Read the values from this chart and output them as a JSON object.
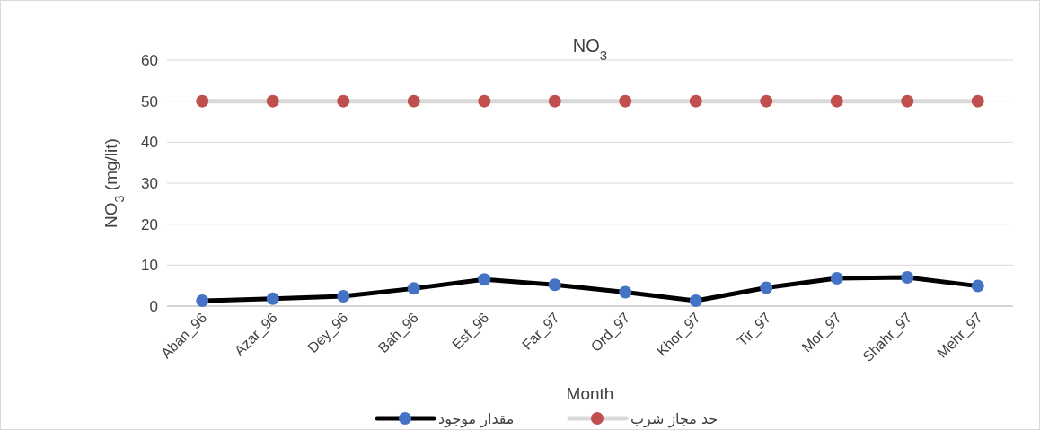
{
  "chart_data": {
    "type": "line",
    "title": "NO$_{3}$",
    "xlabel": "Month",
    "ylabel": "NO$_{3}$ (mg/lit)",
    "categories": [
      "Aban_96",
      "Azar_96",
      "Dey_96",
      "Bah_96",
      "Esf_96",
      "Far_97",
      "Ord_97",
      "Khor_97",
      "Tir_97",
      "Mor_97",
      "Shahr_97",
      "Mehr_97"
    ],
    "series": [
      {
        "name": "مقدار موجود",
        "color": "#4472c4",
        "values": [
          1.3,
          1.8,
          2.4,
          4.3,
          6.5,
          5.2,
          3.4,
          1.3,
          4.5,
          6.8,
          7.0,
          4.9
        ]
      },
      {
        "name": "حد مجاز شرب",
        "color": "#c0504d",
        "values": [
          50,
          50,
          50,
          50,
          50,
          50,
          50,
          50,
          50,
          50,
          50,
          50
        ]
      }
    ],
    "ylim": [
      0,
      60
    ],
    "yticks": [
      0,
      10,
      20,
      30,
      40,
      50,
      60
    ],
    "grid": "y",
    "legend": "bottom",
    "marker": "circle",
    "line_style": "solid"
  }
}
